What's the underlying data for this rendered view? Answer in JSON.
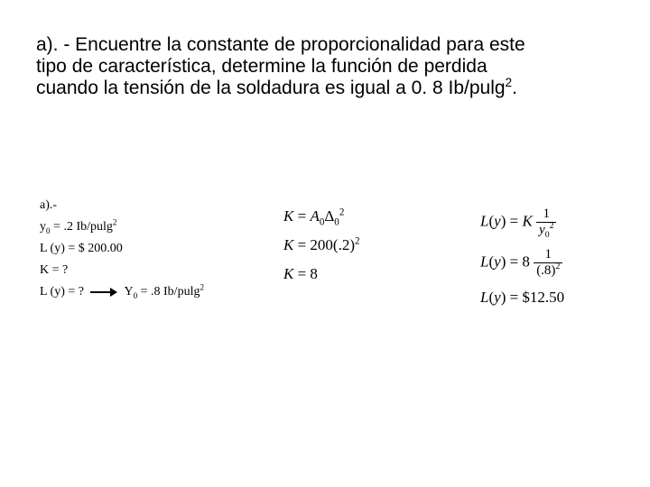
{
  "question": {
    "prefix": "a). - ",
    "body1": "Encuentre la constante de proporcionalidad para este tipo de característica, determine la función de perdida cuando la tensión de la soldadura es igual a 0. 8 Ib/pulg",
    "exp": "2",
    "suffix": "."
  },
  "left": {
    "l0": "a).-",
    "l1_a": "y",
    "l1_sub": "0",
    "l1_b": " = .2 Ib/pulg",
    "l1_exp": "2",
    "l2": "L (y) = $ 200.00",
    "l3": "K = ?",
    "l4_a": "L (y) = ?",
    "l4_b": "Y",
    "l4_sub": "0",
    "l4_c": " = .8 Ib/pulg",
    "l4_exp": "2"
  },
  "mid": {
    "m1_a": "K",
    "m1_b": " = ",
    "m1_c": "A",
    "m1_c_sub": "0",
    "m1_d": "Δ",
    "m1_d_sub": "0",
    "m1_e_exp": "2",
    "m2_a": "K",
    "m2_b": " = 200(.2)",
    "m2_exp": "2",
    "m3_a": "K",
    "m3_b": " = 8"
  },
  "right": {
    "r1_a": "L",
    "r1_b": "(",
    "r1_c": "y",
    "r1_d": ") = ",
    "r1_e": "K",
    "r1_num": "1",
    "r1_den_a": "y",
    "r1_den_sub": "0",
    "r1_den_exp": "2",
    "r2_a": "L",
    "r2_b": "(",
    "r2_c": "y",
    "r2_d": ") = 8",
    "r2_num": "1",
    "r2_den_a": "(.8)",
    "r2_den_exp": "2",
    "r3_a": "L",
    "r3_b": "(",
    "r3_c": "y",
    "r3_d": ") = $12.50"
  }
}
